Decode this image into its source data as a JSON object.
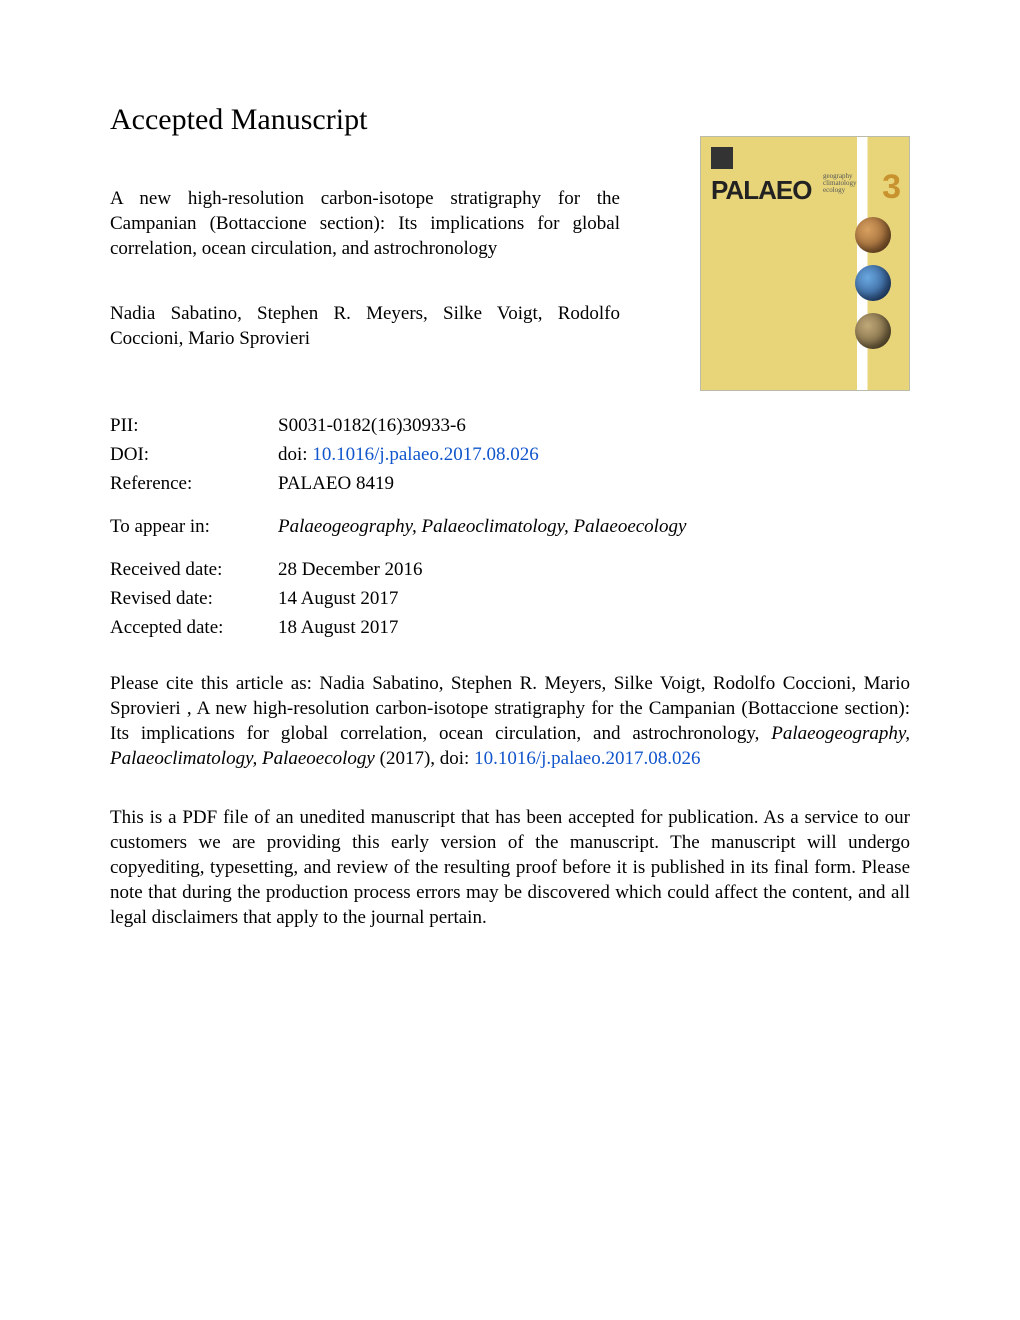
{
  "heading": "Accepted Manuscript",
  "article": {
    "title": "A new high-resolution carbon-isotope stratigraphy for the Campanian (Bottaccione section): Its implications for global correlation, ocean circulation, and astrochronology",
    "authors": "Nadia Sabatino, Stephen R. Meyers, Silke Voigt, Rodolfo Coccioni, Mario Sprovieri"
  },
  "cover": {
    "brand": "PALAEO",
    "sub1": "geography",
    "sub2": "climatology",
    "sub3": "ecology",
    "issue_digit": "3"
  },
  "meta": {
    "pii_label": "PII:",
    "pii": "S0031-0182(16)30933-6",
    "doi_label": "DOI:",
    "doi_prefix": "doi: ",
    "doi_link": "10.1016/j.palaeo.2017.08.026",
    "reference_label": "Reference:",
    "reference": "PALAEO 8419",
    "appear_label": "To appear in:",
    "appear_journal": "Palaeogeography, Palaeoclimatology, Palaeoecology",
    "received_label": "Received date:",
    "received": "28 December 2016",
    "revised_label": "Revised date:",
    "revised": "14 August 2017",
    "accepted_label": "Accepted date:",
    "accepted": "18 August 2017"
  },
  "citation": {
    "pre": "Please cite this article as: Nadia Sabatino, Stephen R. Meyers, Silke Voigt, Rodolfo Coccioni, Mario Sprovieri , A new high-resolution carbon-isotope stratigraphy for the Campanian (Bottaccione section): Its implications for global correlation, ocean circulation, and astrochronology, ",
    "journal": "Palaeogeography, Palaeoclimatology, Palaeoecology",
    "post": " (2017), doi: ",
    "link": "10.1016/j.palaeo.2017.08.026"
  },
  "disclaimer": "This is a PDF file of an unedited manuscript that has been accepted for publication. As a service to our customers we are providing this early version of the manuscript. The manuscript will undergo copyediting, typesetting, and review of the resulting proof before it is published in its final form. Please note that during the production process errors may be discovered which could affect the content, and all legal disclaimers that apply to the journal pertain.",
  "colors": {
    "link": "#1155cc",
    "cover_bg": "#e8d57a",
    "text": "#000000"
  }
}
